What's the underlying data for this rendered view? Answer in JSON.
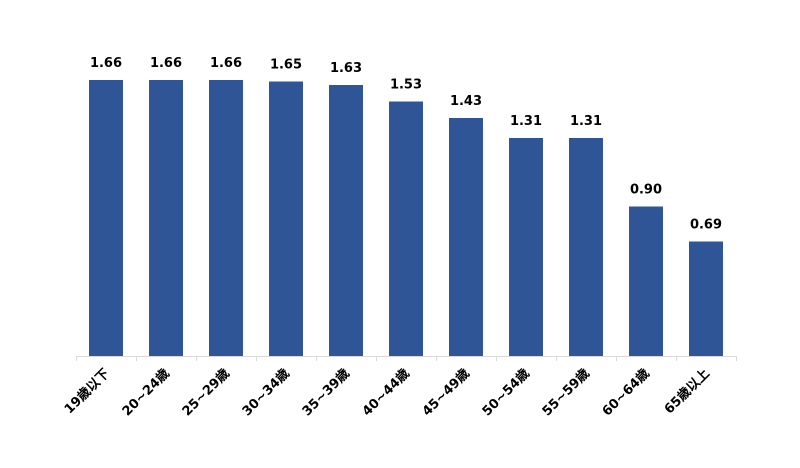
{
  "chart_data": {
    "type": "bar",
    "categories": [
      "19歳以下",
      "20~24歳",
      "25~29歳",
      "30~34歳",
      "35~39歳",
      "40~44歳",
      "45~49歳",
      "50~54歳",
      "55~59歳",
      "60~64歳",
      "65歳以上"
    ],
    "series": [
      {
        "values": [
          1.66,
          1.66,
          1.66,
          1.65,
          1.63,
          1.53,
          1.43,
          1.31,
          1.31,
          0.9,
          0.69
        ],
        "value_labels": [
          "1.66",
          "1.66",
          "1.66",
          "1.65",
          "1.63",
          "1.53",
          "1.43",
          "1.31",
          "1.31",
          "0.90",
          "0.69"
        ],
        "color": "#2f5597"
      }
    ],
    "title": "",
    "xlabel": "",
    "ylabel": "",
    "ylim": [
      0,
      1.8
    ],
    "grid": false,
    "legend": "none",
    "data_labels": true
  }
}
